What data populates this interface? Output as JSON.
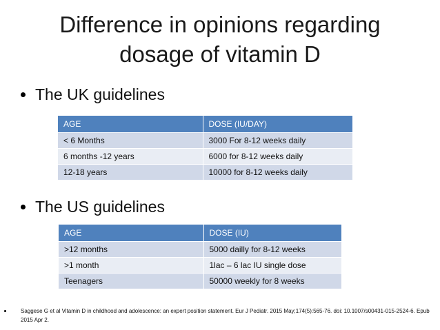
{
  "slide": {
    "title_line1": "Difference in opinions regarding",
    "title_line2": "dosage of vitamin D"
  },
  "uk": {
    "bullet": "The UK guidelines",
    "headers": [
      "AGE",
      "DOSE (IU/DAY)"
    ],
    "rows": [
      [
        "< 6 Months",
        "3000  For 8-12 weeks daily"
      ],
      [
        "6 months -12 years",
        "6000 for 8-12 weeks daily"
      ],
      [
        "12-18 years",
        "10000 for 8-12 weeks daily"
      ]
    ]
  },
  "us": {
    "bullet": "The US guidelines",
    "headers": [
      "AGE",
      "DOSE (IU)"
    ],
    "rows": [
      [
        ">12 months",
        "5000 dailly for 8-12 weeks"
      ],
      [
        ">1 month",
        "1lac – 6 lac IU single dose"
      ],
      [
        "Teenagers",
        "50000 weekly for 8 weeks"
      ]
    ]
  },
  "reference": "Saggese G et al Vitamin D in childhood and adolescence: an expert position statement. Eur J Pediatr. 2015 May;174(5):565-76. doi: 10.1007/s00431-015-2524-6. Epub 2015 Apr 2.",
  "colors": {
    "header_fill": "#4f81bd",
    "row_odd": "#d0d8e8",
    "row_even": "#e9edf4"
  }
}
